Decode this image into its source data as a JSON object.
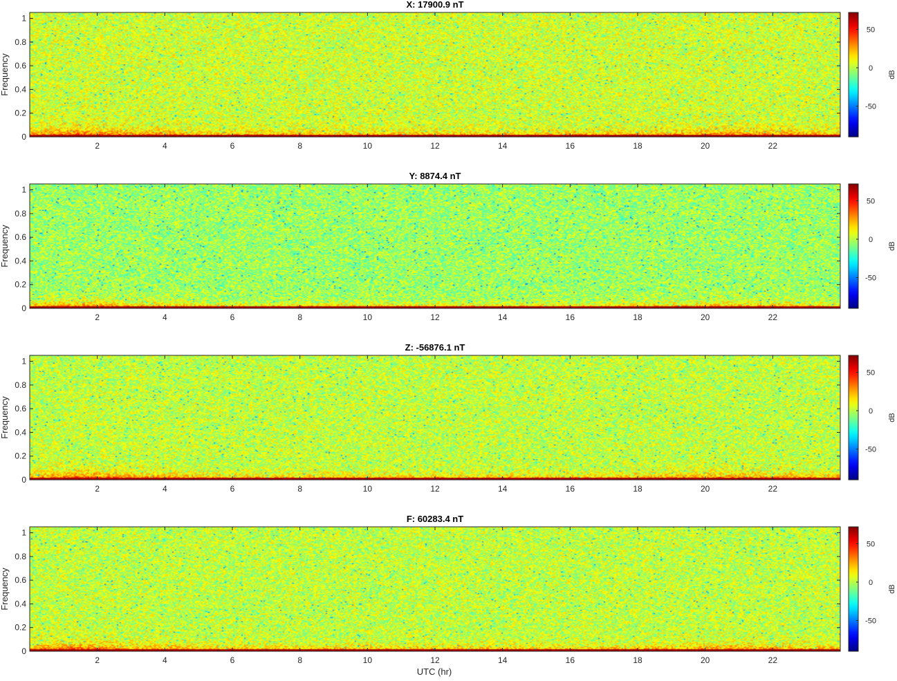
{
  "figure": {
    "xlabel": "UTC (hr)"
  },
  "chart_data": [
    {
      "type": "heatmap",
      "title": "X: 17900.9 nT",
      "xlabel": "",
      "ylabel": "Frequency",
      "xlim": [
        0,
        24
      ],
      "ylim": [
        0,
        1.05
      ],
      "x_ticks": [
        2,
        4,
        6,
        8,
        10,
        12,
        14,
        16,
        18,
        20,
        22
      ],
      "y_ticks": [
        0,
        0.2,
        0.4,
        0.6,
        0.8,
        1
      ],
      "colorbar": {
        "label": "dB",
        "range": [
          -90,
          72
        ],
        "ticks": [
          -50,
          0,
          50
        ],
        "colormap": "jet"
      },
      "baseline_db": 4,
      "seed": 11
    },
    {
      "type": "heatmap",
      "title": "Y: 8874.4 nT",
      "xlabel": "",
      "ylabel": "Frequency",
      "xlim": [
        0,
        24
      ],
      "ylim": [
        0,
        1.05
      ],
      "x_ticks": [
        2,
        4,
        6,
        8,
        10,
        12,
        14,
        16,
        18,
        20,
        22
      ],
      "y_ticks": [
        0,
        0.2,
        0.4,
        0.6,
        0.8,
        1
      ],
      "colorbar": {
        "label": "dB",
        "range": [
          -90,
          72
        ],
        "ticks": [
          -50,
          0,
          50
        ],
        "colormap": "jet"
      },
      "baseline_db": -4,
      "seed": 23
    },
    {
      "type": "heatmap",
      "title": "Z: -56876.1 nT",
      "xlabel": "",
      "ylabel": "Frequency",
      "xlim": [
        0,
        24
      ],
      "ylim": [
        0,
        1.05
      ],
      "x_ticks": [
        2,
        4,
        6,
        8,
        10,
        12,
        14,
        16,
        18,
        20,
        22
      ],
      "y_ticks": [
        0,
        0.2,
        0.4,
        0.6,
        0.8,
        1
      ],
      "colorbar": {
        "label": "dB",
        "range": [
          -90,
          72
        ],
        "ticks": [
          -50,
          0,
          50
        ],
        "colormap": "jet"
      },
      "baseline_db": 2,
      "seed": 37
    },
    {
      "type": "heatmap",
      "title": "F: 60283.4 nT",
      "xlabel": "UTC (hr)",
      "ylabel": "Frequency",
      "xlim": [
        0,
        24
      ],
      "ylim": [
        0,
        1.05
      ],
      "x_ticks": [
        2,
        4,
        6,
        8,
        10,
        12,
        14,
        16,
        18,
        20,
        22
      ],
      "y_ticks": [
        0,
        0.2,
        0.4,
        0.6,
        0.8,
        1
      ],
      "colorbar": {
        "label": "dB",
        "range": [
          -90,
          72
        ],
        "ticks": [
          -50,
          0,
          50
        ],
        "colormap": "jet"
      },
      "baseline_db": 2,
      "seed": 51
    }
  ]
}
